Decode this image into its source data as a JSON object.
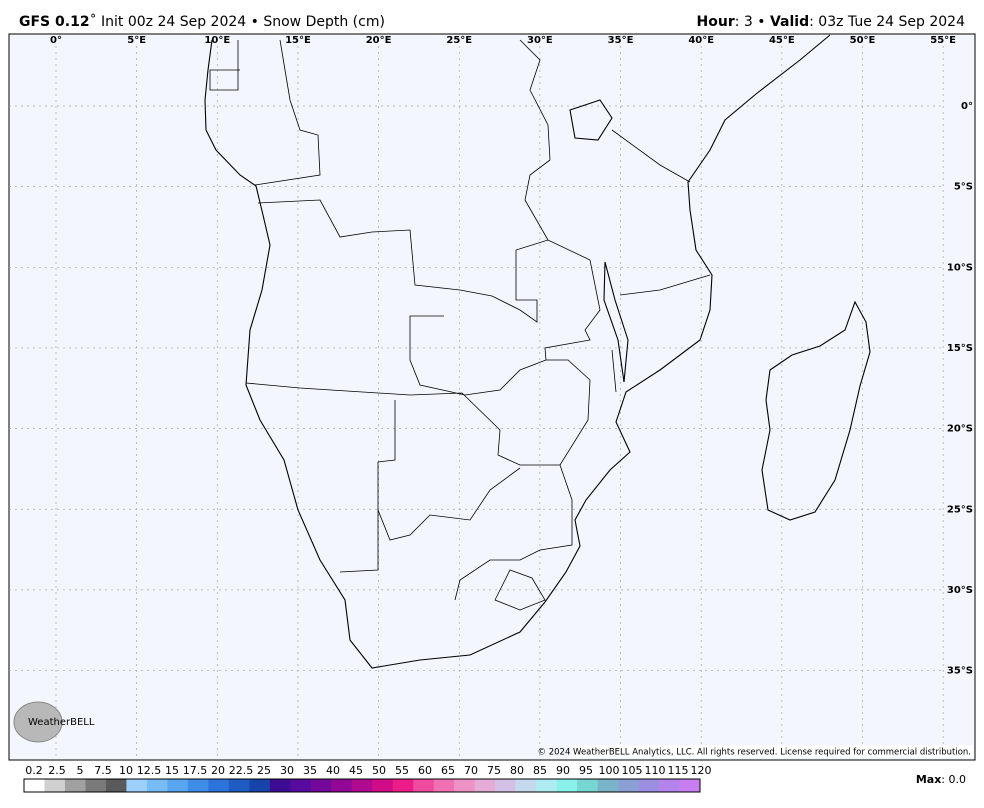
{
  "header": {
    "left": [
      "GFS 0.12",
      "˚ Init 00z 24 Sep 2024 • Snow Depth (cm)"
    ],
    "right": [
      "Hour",
      ": 3 • ",
      "Valid",
      ": 03z Tue 24 Sep 2024"
    ]
  },
  "map": {
    "lon_labels": [
      "0°",
      "5°E",
      "10°E",
      "15°E",
      "20°E",
      "25°E",
      "30°E",
      "35°E",
      "40°E",
      "45°E",
      "50°E",
      "55°E"
    ],
    "lat_labels": [
      "0°",
      "5°S",
      "10°S",
      "15°S",
      "20°S",
      "25°S",
      "30°S",
      "35°S"
    ],
    "copyright": "© 2024 WeatherBELL Analytics, LLC. All rights reserved. License required for commercial distribution.",
    "logo": "WeatherBELL"
  },
  "legend": {
    "labels": [
      "0.2",
      "2.5",
      "5",
      "7.5",
      "10",
      "12.5",
      "15",
      "17.5",
      "20",
      "22.5",
      "25",
      "30",
      "35",
      "40",
      "45",
      "50",
      "55",
      "60",
      "65",
      "70",
      "75",
      "80",
      "85",
      "90",
      "95",
      "100",
      "105",
      "110",
      "115",
      "120"
    ],
    "colors": [
      "#ffffff",
      "#d0d0d0",
      "#a0a0a0",
      "#7a7a7a",
      "#5a5a5a",
      "#9cd0fa",
      "#78bcf6",
      "#58a6f0",
      "#3e8ee8",
      "#2c74dc",
      "#1e5cc4",
      "#1644aa",
      "#3c0c94",
      "#560aa0",
      "#74089a",
      "#920896",
      "#b00a90",
      "#d00c88",
      "#ec1c88",
      "#f04a9e",
      "#f070b4",
      "#ee92c6",
      "#e4acd6",
      "#d4c0e4",
      "#c4d8ee",
      "#aeecf2",
      "#8af0ea",
      "#76d6d2",
      "#7ab4c8",
      "#8aa0d4",
      "#9c8ee0",
      "#b484ec",
      "#c87ef0"
    ],
    "max_label": [
      "Max",
      ": 0.0"
    ]
  }
}
